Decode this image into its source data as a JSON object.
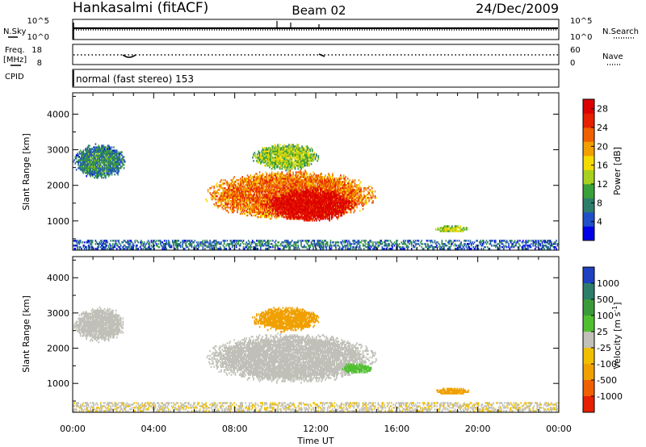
{
  "header": {
    "station": "Hankasalmi (fitACF)",
    "beam": "Beam 02",
    "date": "24/Dec/2009"
  },
  "status_panels": {
    "nsky_label": "N.Sky",
    "nsearch_label": "N.Search",
    "freq_label_line1": "Freq.",
    "freq_label_line2": "[MHz]",
    "nave_label": "Nave",
    "cpid_label": "CPID",
    "noise_ticks": [
      "10^5",
      "10^0"
    ],
    "freq_ticks": [
      "18",
      "8"
    ],
    "nave_ticks": [
      "60",
      "0"
    ],
    "mode_text": "normal (fast stereo) 153"
  },
  "chart_data": [
    {
      "type": "heatmap",
      "name": "power",
      "xlabel": "Time UT",
      "ylabel": "Slant Range [km]",
      "x_range_hours": [
        0,
        24
      ],
      "ylim": [
        180,
        4600
      ],
      "x_ticks": [
        "00:00",
        "04:00",
        "08:00",
        "12:00",
        "16:00",
        "20:00",
        "00:00"
      ],
      "y_ticks": [
        "1000",
        "2000",
        "3000",
        "4000"
      ],
      "colorbar": {
        "label": "Power [dB]",
        "ticks": [
          "4",
          "8",
          "12",
          "16",
          "20",
          "24",
          "28"
        ],
        "range": [
          0,
          30
        ],
        "colors": [
          "#0000e6",
          "#2050c8",
          "#2e7d6a",
          "#3aa03a",
          "#a8d020",
          "#f5dc00",
          "#f0a000",
          "#f06000",
          "#e62000",
          "#dc0000"
        ]
      },
      "regions": [
        {
          "t0": 0.0,
          "t1": 2.6,
          "r0": 2150,
          "r1": 3150,
          "value": 6
        },
        {
          "t0": 6.5,
          "t1": 15.0,
          "r0": 1000,
          "r1": 2400,
          "value": 20
        },
        {
          "t0": 9.5,
          "t1": 14.0,
          "r0": 950,
          "r1": 1900,
          "value": 27
        },
        {
          "t0": 8.8,
          "t1": 12.2,
          "r0": 2400,
          "r1": 3150,
          "value": 11
        },
        {
          "t0": 17.8,
          "t1": 19.6,
          "r0": 650,
          "r1": 850,
          "value": 12
        },
        {
          "t0": 0.0,
          "t1": 24.0,
          "r0": 200,
          "r1": 450,
          "value": 5
        }
      ]
    },
    {
      "type": "heatmap",
      "name": "velocity",
      "xlabel": "Time UT",
      "ylabel": "Slant Range [km]",
      "x_range_hours": [
        0,
        24
      ],
      "ylim": [
        180,
        4600
      ],
      "x_ticks": [
        "00:00",
        "04:00",
        "08:00",
        "12:00",
        "16:00",
        "20:00",
        "00:00"
      ],
      "y_ticks": [
        "1000",
        "2000",
        "3000",
        "4000"
      ],
      "colorbar": {
        "label": "Velocity [m s",
        "label_superscript": "-1",
        "label_close": "]",
        "ticks": [
          "1000",
          "500",
          "100",
          "25",
          "-25",
          "-100",
          "-500",
          "-1000"
        ],
        "colors": [
          "#2040c0",
          "#2e7d6a",
          "#3a9a3a",
          "#50c030",
          "#c0c0b8",
          "#f0c000",
          "#f0a000",
          "#f06000",
          "#e62000"
        ]
      },
      "regions": [
        {
          "t0": 0.0,
          "t1": 2.6,
          "r0": 2150,
          "r1": 3150,
          "value": 0
        },
        {
          "t0": 6.5,
          "t1": 15.0,
          "r0": 1000,
          "r1": 2400,
          "value": 0
        },
        {
          "t0": 8.8,
          "t1": 12.2,
          "r0": 2450,
          "r1": 3150,
          "value": -300
        },
        {
          "t0": 13.2,
          "t1": 14.8,
          "r0": 1250,
          "r1": 1550,
          "value": 60
        },
        {
          "t0": 17.8,
          "t1": 19.6,
          "r0": 650,
          "r1": 850,
          "value": -150
        },
        {
          "t0": 0.0,
          "t1": 24.0,
          "r0": 200,
          "r1": 450,
          "value": -20
        }
      ]
    }
  ]
}
